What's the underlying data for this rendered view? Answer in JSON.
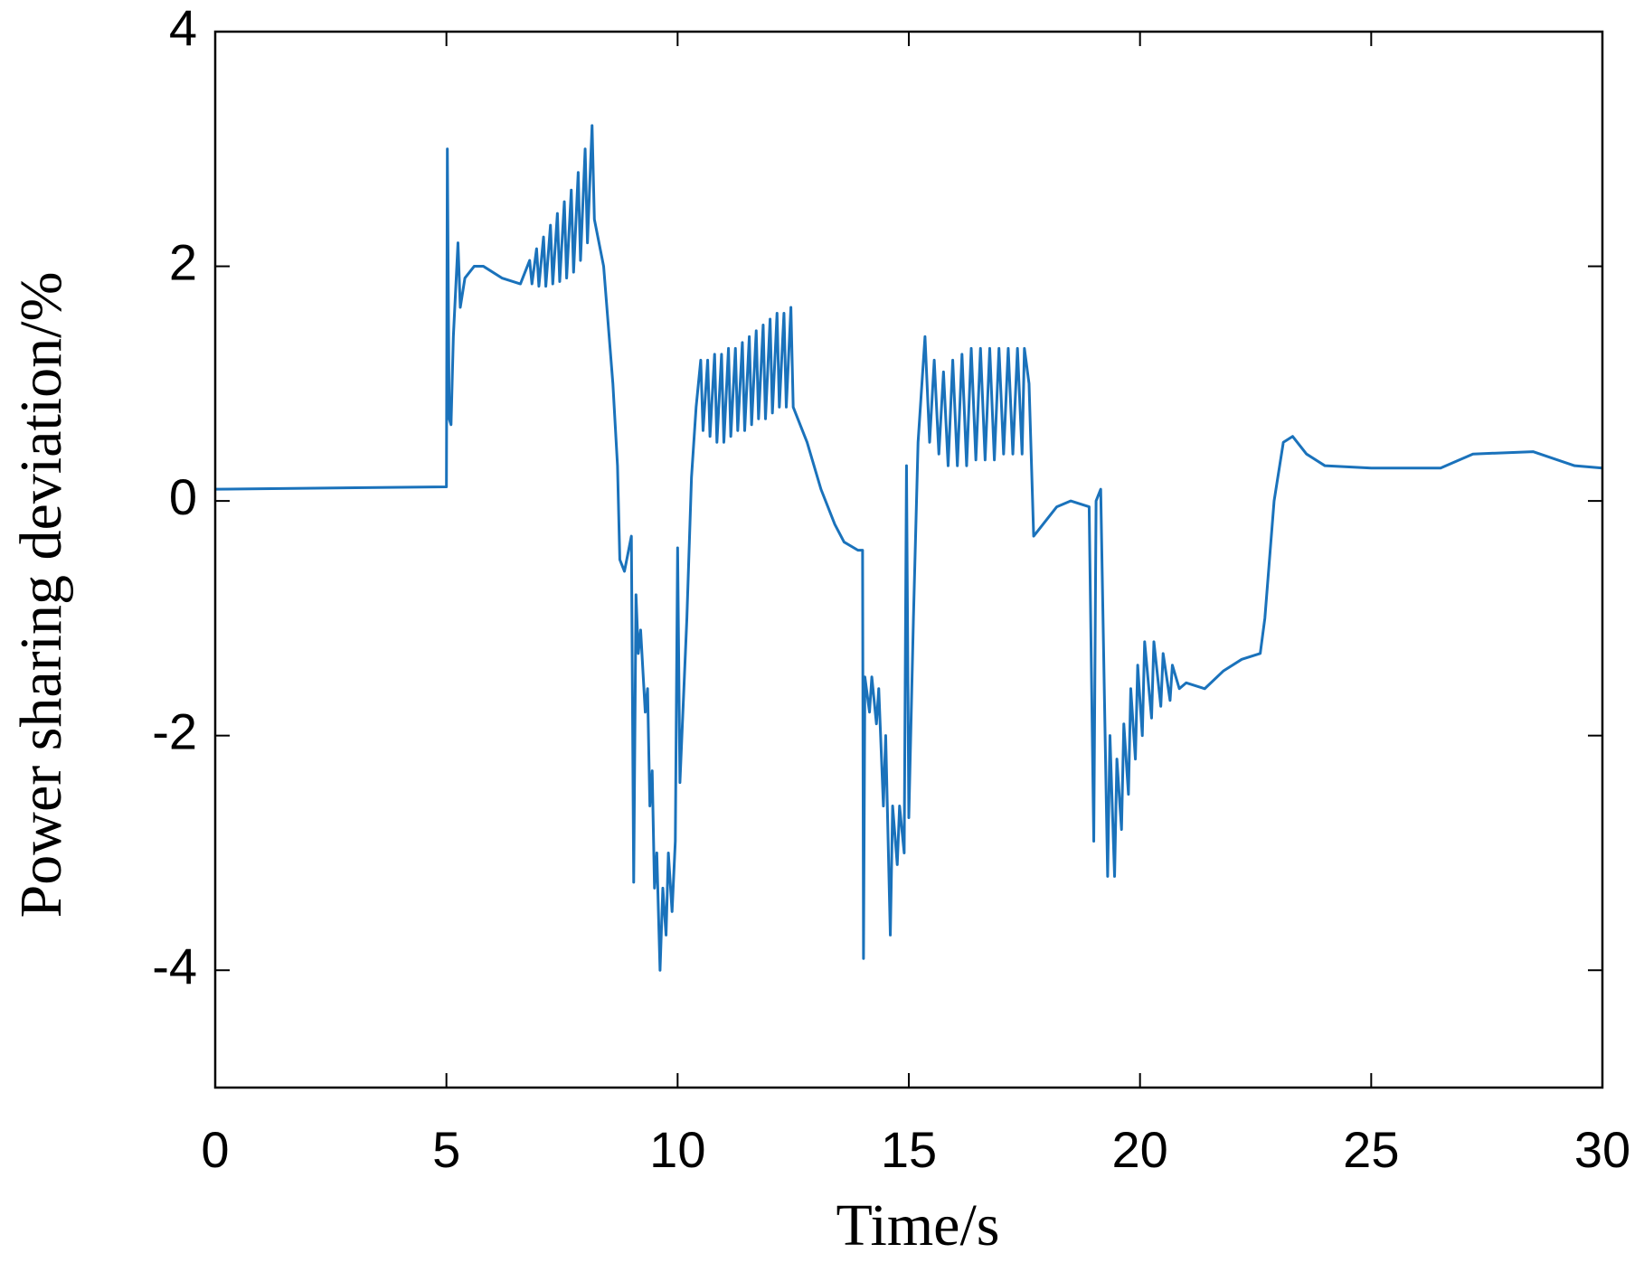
{
  "chart_data": {
    "type": "line",
    "xlabel": "Time/s",
    "ylabel": "Power sharing deviation/%",
    "x": [
      0,
      4.98,
      5.0,
      5.02,
      5.06,
      5.1,
      5.15,
      5.2,
      5.25,
      5.3,
      5.4,
      5.6,
      5.8,
      6.2,
      6.6,
      6.8,
      6.85,
      6.95,
      7.0,
      7.1,
      7.15,
      7.25,
      7.3,
      7.4,
      7.45,
      7.55,
      7.6,
      7.7,
      7.75,
      7.85,
      7.9,
      8.0,
      8.05,
      8.15,
      8.2,
      8.4,
      8.6,
      8.7,
      8.75,
      8.85,
      8.95,
      9.0,
      9.05,
      9.1,
      9.15,
      9.2,
      9.3,
      9.35,
      9.4,
      9.45,
      9.5,
      9.55,
      9.62,
      9.68,
      9.75,
      9.8,
      9.88,
      9.95,
      10.0,
      10.05,
      10.2,
      10.3,
      10.4,
      10.5,
      10.55,
      10.65,
      10.7,
      10.8,
      10.85,
      10.95,
      11.0,
      11.1,
      11.15,
      11.25,
      11.3,
      11.4,
      11.45,
      11.55,
      11.6,
      11.7,
      11.75,
      11.85,
      11.9,
      12.0,
      12.05,
      12.15,
      12.2,
      12.3,
      12.35,
      12.45,
      12.5,
      12.8,
      13.1,
      13.4,
      13.6,
      13.9,
      14.0,
      14.02,
      14.05,
      14.15,
      14.2,
      14.3,
      14.35,
      14.45,
      14.5,
      14.6,
      14.65,
      14.75,
      14.8,
      14.9,
      14.95,
      15.0,
      15.1,
      15.2,
      15.35,
      15.45,
      15.55,
      15.65,
      15.75,
      15.85,
      15.95,
      16.05,
      16.15,
      16.25,
      16.35,
      16.45,
      16.55,
      16.65,
      16.75,
      16.85,
      16.95,
      17.05,
      17.15,
      17.25,
      17.35,
      17.45,
      17.5,
      17.6,
      17.7,
      17.9,
      18.2,
      18.5,
      18.9,
      19.0,
      19.05,
      19.15,
      19.2,
      19.3,
      19.35,
      19.45,
      19.5,
      19.6,
      19.65,
      19.75,
      19.8,
      19.9,
      19.95,
      20.05,
      20.1,
      20.25,
      20.3,
      20.45,
      20.5,
      20.65,
      20.7,
      20.85,
      21.0,
      21.4,
      21.8,
      22.2,
      22.6,
      22.7,
      22.9,
      23.1,
      23.3,
      23.6,
      24.0,
      25,
      26.5,
      27.2,
      28.5,
      29.4,
      30
    ],
    "values": [
      0.1,
      0.12,
      0.12,
      3.0,
      0.7,
      0.65,
      1.4,
      1.8,
      2.2,
      1.65,
      1.9,
      2.0,
      2.0,
      1.9,
      1.85,
      2.05,
      1.85,
      2.15,
      1.83,
      2.25,
      1.83,
      2.35,
      1.85,
      2.45,
      1.87,
      2.55,
      1.9,
      2.65,
      1.95,
      2.8,
      2.05,
      3.0,
      2.2,
      3.2,
      2.4,
      2.0,
      1.0,
      0.3,
      -0.5,
      -0.6,
      -0.4,
      -0.3,
      -3.25,
      -0.8,
      -1.3,
      -1.1,
      -1.8,
      -1.6,
      -2.6,
      -2.3,
      -3.3,
      -3.0,
      -4.0,
      -3.3,
      -3.7,
      -3.0,
      -3.5,
      -2.9,
      -0.4,
      -2.4,
      -1.0,
      0.2,
      0.8,
      1.2,
      0.6,
      1.2,
      0.55,
      1.25,
      0.5,
      1.25,
      0.5,
      1.3,
      0.55,
      1.3,
      0.6,
      1.35,
      0.6,
      1.4,
      0.65,
      1.45,
      0.7,
      1.5,
      0.7,
      1.55,
      0.75,
      1.6,
      0.8,
      1.6,
      0.8,
      1.65,
      0.8,
      0.5,
      0.1,
      -0.2,
      -0.35,
      -0.42,
      -0.42,
      -3.9,
      -1.5,
      -1.8,
      -1.5,
      -1.9,
      -1.6,
      -2.6,
      -2.0,
      -3.7,
      -2.6,
      -3.1,
      -2.6,
      -3.0,
      0.3,
      -2.7,
      -1.0,
      0.5,
      1.4,
      0.5,
      1.2,
      0.4,
      1.1,
      0.3,
      1.2,
      0.3,
      1.25,
      0.3,
      1.3,
      0.35,
      1.3,
      0.35,
      1.3,
      0.35,
      1.3,
      0.4,
      1.3,
      0.4,
      1.3,
      0.4,
      1.3,
      1.0,
      -0.3,
      -0.2,
      -0.05,
      0.0,
      -0.05,
      -2.9,
      0.0,
      0.1,
      -1.0,
      -3.2,
      -2.0,
      -3.2,
      -2.2,
      -2.8,
      -1.9,
      -2.5,
      -1.6,
      -2.2,
      -1.4,
      -2.0,
      -1.2,
      -1.85,
      -1.2,
      -1.75,
      -1.3,
      -1.7,
      -1.4,
      -1.6,
      -1.55,
      -1.6,
      -1.45,
      -1.35,
      -1.3,
      -1.0,
      0.0,
      0.5,
      0.55,
      0.4,
      0.3,
      0.28,
      0.28,
      0.4,
      0.42,
      0.3,
      0.28
    ],
    "color": "#1a72bb",
    "xlim": [
      0,
      30
    ],
    "xticks": [
      0,
      5,
      10,
      15,
      20,
      25,
      30
    ],
    "ylim": [
      -5,
      4
    ],
    "yticks": [
      -4,
      -2,
      0,
      2,
      4
    ]
  }
}
